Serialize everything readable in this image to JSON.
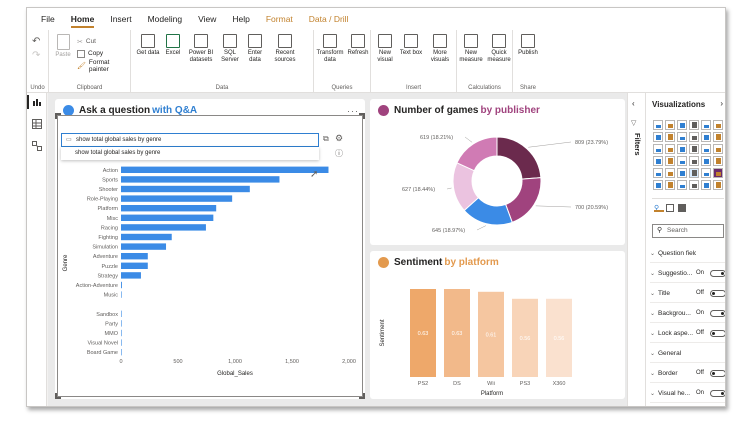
{
  "menu": {
    "tabs": [
      "File",
      "Home",
      "Insert",
      "Modeling",
      "View",
      "Help",
      "Format",
      "Data / Drill"
    ],
    "active": "Home"
  },
  "ribbon": {
    "undo": {
      "label": "Undo"
    },
    "clipboard": {
      "paste": "Paste",
      "cut": "Cut",
      "copy": "Copy",
      "format_painter": "Format painter",
      "label": "Clipboard"
    },
    "data": {
      "get_data": "Get data",
      "excel": "Excel",
      "pbi_datasets": "Power BI datasets",
      "sql_server": "SQL Server",
      "enter_data": "Enter data",
      "recent_sources": "Recent sources",
      "label": "Data"
    },
    "queries": {
      "transform": "Transform data",
      "refresh": "Refresh",
      "label": "Queries"
    },
    "insert": {
      "new_visual": "New visual",
      "text_box": "Text box",
      "more_visuals": "More visuals",
      "label": "Insert"
    },
    "calculations": {
      "new_measure": "New measure",
      "quick_measure": "Quick measure",
      "label": "Calculations"
    },
    "share": {
      "publish": "Publish",
      "label": "Share"
    }
  },
  "qna": {
    "title_plain": "Ask a question ",
    "title_highlight": "with Q&A",
    "query": "show total global sales by genre",
    "suggestion": "show total global sales by genre",
    "xlabel": "Global_Sales",
    "ylabel": "Genre",
    "color": "#3b8be6",
    "ticks": [
      "0",
      "500",
      "1,000",
      "1,500",
      "2,000"
    ]
  },
  "donut": {
    "title_plain": "Number of games ",
    "title_highlight": "by publisher",
    "labels": [
      "809 (23.79%)",
      "700 (20.59%)",
      "645 (18.97%)",
      "627 (18.44%)",
      "619 (18.21%)"
    ]
  },
  "sentiment": {
    "title_plain": "Sentiment ",
    "title_highlight": "by platform",
    "xlabel": "Platform",
    "ylabel": "Sentiment"
  },
  "chart_data": [
    {
      "type": "bar",
      "orientation": "horizontal",
      "categories": [
        "Action",
        "Sports",
        "Shooter",
        "Role-Playing",
        "Platform",
        "Misc",
        "Racing",
        "Fighting",
        "Simulation",
        "Adventure",
        "Puzzle",
        "Strategy",
        "Action-Adventure",
        "Music",
        "",
        "Sandbox",
        "Party",
        "MMO",
        "Visual Novel",
        "Board Game"
      ],
      "values": [
        1820,
        1390,
        1130,
        975,
        835,
        810,
        745,
        445,
        395,
        235,
        235,
        175,
        8,
        4,
        0,
        2,
        2,
        2,
        1,
        1
      ],
      "xlabel": "Global_Sales",
      "ylabel": "Genre",
      "xlim": [
        0,
        2000
      ]
    },
    {
      "type": "pie",
      "donut": true,
      "values": [
        809,
        700,
        645,
        627,
        619
      ],
      "labels": [
        "809 (23.79%)",
        "700 (20.59%)",
        "645 (18.97%)",
        "627 (18.44%)",
        "619 (18.21%)"
      ],
      "colors": [
        "#6b2a4d",
        "#a0437e",
        "#3b8be6",
        "#ebc3e0",
        "#d07bb4"
      ]
    },
    {
      "type": "bar",
      "categories": [
        "PS2",
        "DS",
        "Wii",
        "PS3",
        "X360"
      ],
      "values": [
        0.63,
        0.63,
        0.61,
        0.56,
        0.56
      ],
      "xlabel": "Platform",
      "ylabel": "Sentiment",
      "colors": [
        "#eea86a",
        "#f2b98a",
        "#f5c6a0",
        "#f8d4b8",
        "#fae1cf"
      ]
    }
  ],
  "filters": {
    "label": "Filters"
  },
  "visualizations": {
    "title": "Visualizations",
    "search_placeholder": "Search",
    "properties": [
      {
        "name": "Question field",
        "value": "",
        "toggle": ""
      },
      {
        "name": "Suggestio...",
        "value": "On",
        "toggle": "on"
      },
      {
        "name": "Title",
        "value": "Off",
        "toggle": "off"
      },
      {
        "name": "Backgrou...",
        "value": "On",
        "toggle": "on"
      },
      {
        "name": "Lock aspe...",
        "value": "Off",
        "toggle": "off"
      },
      {
        "name": "General",
        "value": "",
        "toggle": ""
      },
      {
        "name": "Border",
        "value": "Off",
        "toggle": "off"
      },
      {
        "name": "Visual he...",
        "value": "On",
        "toggle": "on"
      }
    ]
  }
}
